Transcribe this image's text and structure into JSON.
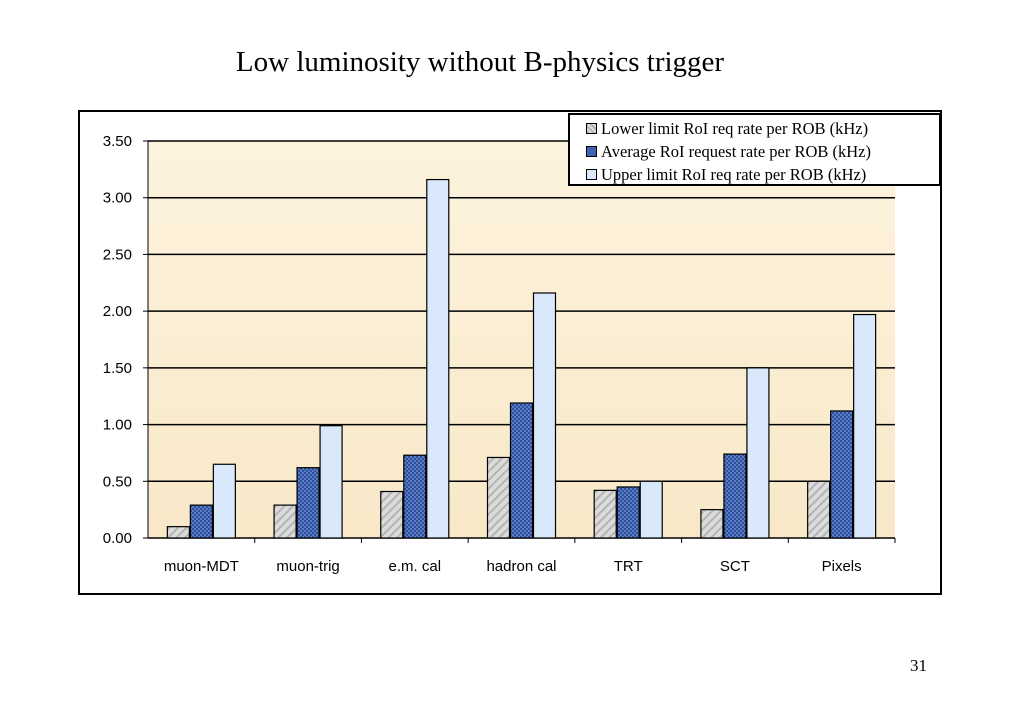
{
  "page_number": "31",
  "colors": {
    "plot_bg": "#fbefd6",
    "lower": "#d0d0d0",
    "average": "#3f63b4",
    "upper": "#d9e9fb"
  },
  "chart_data": {
    "type": "bar",
    "title": "Low luminosity without B-physics trigger",
    "xlabel": "",
    "ylabel": "",
    "ylim": [
      0,
      3.5
    ],
    "yticks": [
      "0.00",
      "0.50",
      "1.00",
      "1.50",
      "2.00",
      "2.50",
      "3.00",
      "3.50"
    ],
    "grid": true,
    "legend_position": "top-right",
    "categories": [
      "muon-MDT",
      "muon-trig",
      "e.m. cal",
      "hadron cal",
      "TRT",
      "SCT",
      "Pixels"
    ],
    "series": [
      {
        "name": "Lower limit RoI req rate per ROB (kHz)",
        "values": [
          0.1,
          0.29,
          0.41,
          0.71,
          0.42,
          0.25,
          0.5
        ]
      },
      {
        "name": "Average RoI request rate per ROB (kHz)",
        "values": [
          0.29,
          0.62,
          0.73,
          1.19,
          0.45,
          0.74,
          1.12
        ]
      },
      {
        "name": "Upper limit RoI req rate per ROB (kHz)",
        "values": [
          0.65,
          0.99,
          3.16,
          2.16,
          0.5,
          1.5,
          1.97
        ]
      }
    ]
  }
}
